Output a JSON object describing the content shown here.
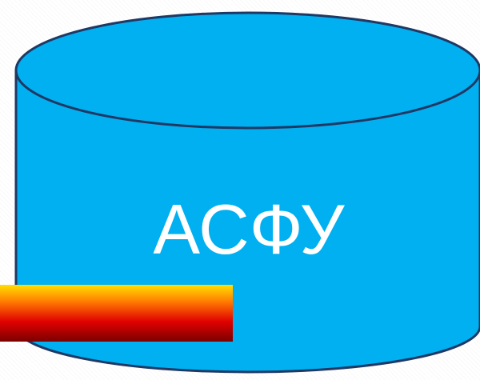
{
  "cylinder": {
    "label": "АСФУ",
    "fill_color": "#00b0f0",
    "outline_color": "#1f3864",
    "label_color": "#ffffff"
  },
  "gradient_bar": {
    "colors": [
      "#ffe000",
      "#ff7a00",
      "#e00000",
      "#7a0000"
    ]
  }
}
